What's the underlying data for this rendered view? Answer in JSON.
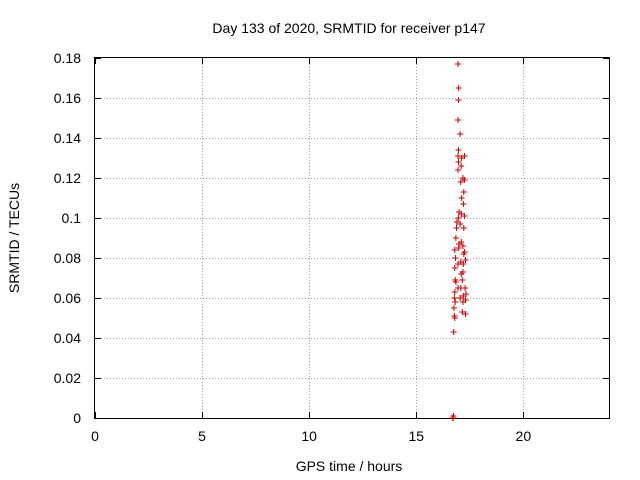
{
  "chart_data": {
    "type": "scatter",
    "title": "Day 133 of 2020, SRMTID for receiver p147",
    "xlabel": "GPS time / hours",
    "ylabel": "SRMTID / TECUs",
    "xlim": [
      0,
      24
    ],
    "ylim": [
      0,
      0.18
    ],
    "xticks": [
      0,
      5,
      10,
      15,
      20
    ],
    "xtick_labels": [
      "0",
      "5",
      "10",
      "15",
      "20"
    ],
    "yticks": [
      0,
      0.02,
      0.04,
      0.06,
      0.08,
      0.1,
      0.12,
      0.14,
      0.16,
      0.18
    ],
    "ytick_labels": [
      "0",
      "0.02",
      "0.04",
      "0.06",
      "0.08",
      "0.1",
      "0.12",
      "0.14",
      "0.16",
      "0.18"
    ],
    "grid": true,
    "marker": "+",
    "series": [
      {
        "color": "#cc0000",
        "points": [
          [
            16.7,
            0.0
          ],
          [
            16.72,
            0.0
          ],
          [
            16.74,
            0.001
          ],
          [
            16.75,
            0.043
          ],
          [
            16.78,
            0.051
          ],
          [
            16.76,
            0.055
          ],
          [
            16.8,
            0.05
          ],
          [
            16.82,
            0.058
          ],
          [
            16.78,
            0.06
          ],
          [
            16.8,
            0.063
          ],
          [
            16.82,
            0.069
          ],
          [
            16.85,
            0.068
          ],
          [
            16.8,
            0.075
          ],
          [
            16.83,
            0.08
          ],
          [
            16.8,
            0.084
          ],
          [
            16.85,
            0.09
          ],
          [
            16.88,
            0.095
          ],
          [
            16.9,
            0.098
          ],
          [
            16.95,
            0.065
          ],
          [
            16.95,
            0.077
          ],
          [
            16.98,
            0.085
          ],
          [
            17.0,
            0.087
          ],
          [
            16.97,
            0.1
          ],
          [
            17.0,
            0.103
          ],
          [
            16.95,
            0.124
          ],
          [
            16.97,
            0.128
          ],
          [
            16.95,
            0.131
          ],
          [
            16.97,
            0.134
          ],
          [
            16.95,
            0.149
          ],
          [
            16.97,
            0.159
          ],
          [
            16.98,
            0.165
          ],
          [
            16.95,
            0.177
          ],
          [
            17.05,
            0.142
          ],
          [
            17.05,
            0.06
          ],
          [
            17.08,
            0.065
          ],
          [
            17.1,
            0.072
          ],
          [
            17.08,
            0.078
          ],
          [
            17.1,
            0.088
          ],
          [
            17.05,
            0.097
          ],
          [
            17.1,
            0.102
          ],
          [
            17.12,
            0.11
          ],
          [
            17.08,
            0.118
          ],
          [
            17.1,
            0.126
          ],
          [
            17.12,
            0.13
          ],
          [
            17.15,
            0.053
          ],
          [
            17.18,
            0.058
          ],
          [
            17.2,
            0.061
          ],
          [
            17.15,
            0.069
          ],
          [
            17.18,
            0.073
          ],
          [
            17.2,
            0.077
          ],
          [
            17.22,
            0.082
          ],
          [
            17.18,
            0.086
          ],
          [
            17.22,
            0.095
          ],
          [
            17.25,
            0.101
          ],
          [
            17.2,
            0.107
          ],
          [
            17.22,
            0.113
          ],
          [
            17.18,
            0.12
          ],
          [
            17.25,
            0.119
          ],
          [
            17.25,
            0.131
          ],
          [
            17.3,
            0.052
          ],
          [
            17.3,
            0.059
          ],
          [
            17.32,
            0.062
          ],
          [
            17.28,
            0.065
          ],
          [
            17.3,
            0.079
          ],
          [
            17.25,
            0.083
          ]
        ]
      }
    ]
  }
}
